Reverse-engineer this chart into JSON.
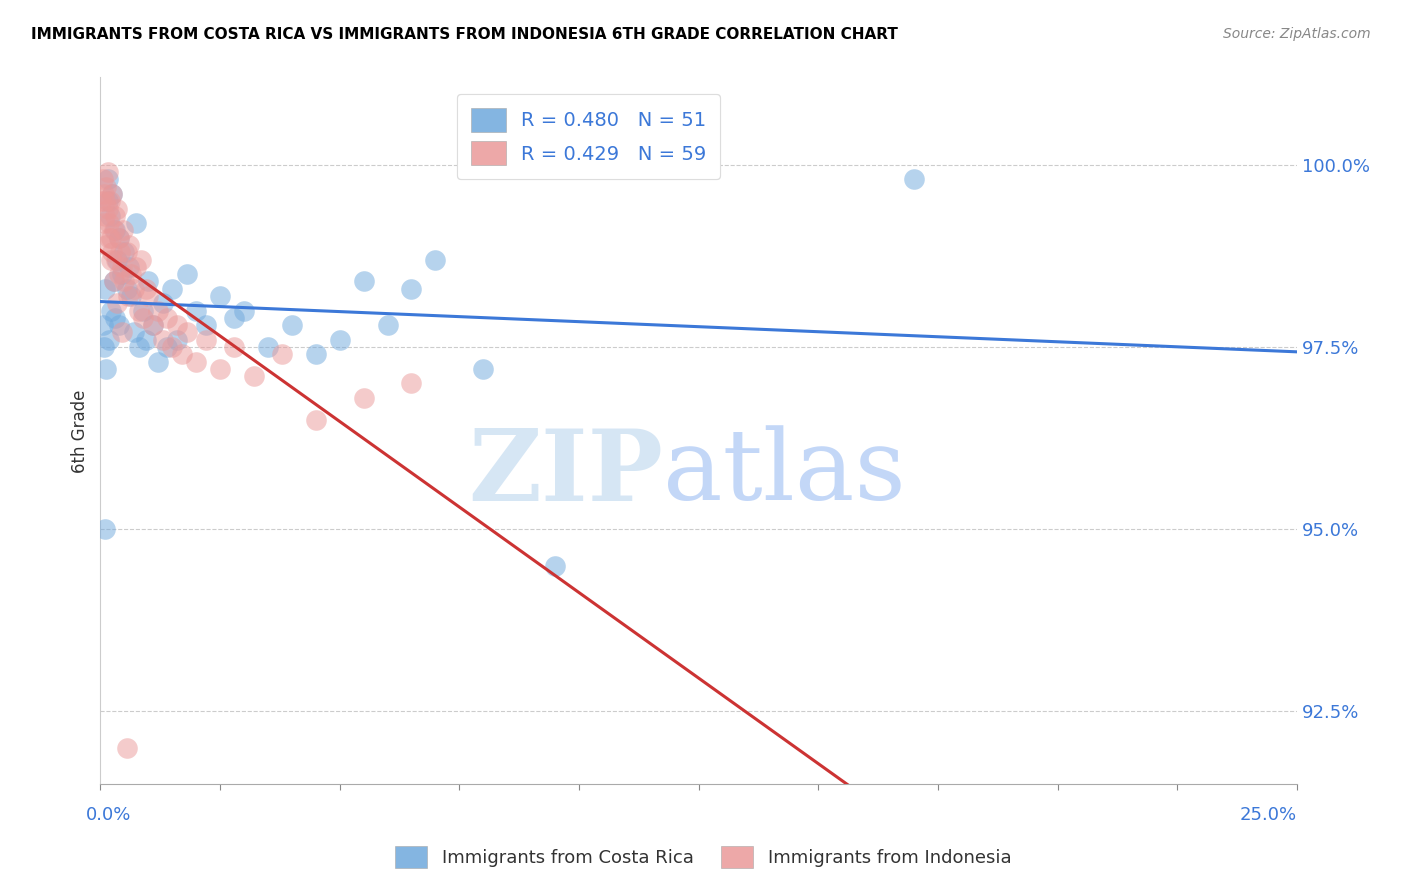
{
  "title": "IMMIGRANTS FROM COSTA RICA VS IMMIGRANTS FROM INDONESIA 6TH GRADE CORRELATION CHART",
  "source": "Source: ZipAtlas.com",
  "ylabel": "6th Grade",
  "xlim": [
    0.0,
    25.0
  ],
  "ylim": [
    91.5,
    101.2
  ],
  "yticks": [
    92.5,
    95.0,
    97.5,
    100.0
  ],
  "ytick_labels": [
    "92.5%",
    "95.0%",
    "97.5%",
    "100.0%"
  ],
  "xtick_left": "0.0%",
  "xtick_right": "25.0%",
  "legend_blue_label": "R = 0.480   N = 51",
  "legend_pink_label": "R = 0.429   N = 59",
  "legend_bottom_blue": "Immigrants from Costa Rica",
  "legend_bottom_pink": "Immigrants from Indonesia",
  "watermark_zip": "ZIP",
  "watermark_atlas": "atlas",
  "blue_color": "#6fa8dc",
  "pink_color": "#ea9999",
  "blue_line_color": "#3c78d8",
  "pink_line_color": "#cc3333",
  "blue_scatter_alpha": 0.5,
  "pink_scatter_alpha": 0.5,
  "costa_rica_x": [
    0.05,
    0.08,
    0.1,
    0.12,
    0.15,
    0.15,
    0.18,
    0.2,
    0.22,
    0.25,
    0.28,
    0.3,
    0.3,
    0.35,
    0.38,
    0.4,
    0.45,
    0.5,
    0.55,
    0.6,
    0.65,
    0.7,
    0.75,
    0.8,
    0.9,
    0.95,
    1.0,
    1.1,
    1.2,
    1.3,
    1.4,
    1.5,
    1.6,
    1.8,
    2.0,
    2.2,
    2.5,
    2.8,
    3.0,
    3.5,
    4.0,
    4.5,
    5.0,
    5.5,
    6.0,
    6.5,
    7.0,
    8.0,
    9.5,
    17.0,
    0.1
  ],
  "costa_rica_y": [
    97.8,
    97.5,
    98.3,
    97.2,
    99.8,
    99.5,
    97.6,
    99.3,
    98.0,
    99.6,
    98.4,
    99.1,
    97.9,
    98.7,
    97.8,
    99.0,
    98.5,
    98.8,
    98.3,
    98.6,
    98.2,
    97.7,
    99.2,
    97.5,
    98.0,
    97.6,
    98.4,
    97.8,
    97.3,
    98.1,
    97.5,
    98.3,
    97.6,
    98.5,
    98.0,
    97.8,
    98.2,
    97.9,
    98.0,
    97.5,
    97.8,
    97.4,
    97.6,
    98.4,
    97.8,
    98.3,
    98.7,
    97.2,
    94.5,
    99.8,
    95.0
  ],
  "indonesia_x": [
    0.02,
    0.05,
    0.08,
    0.1,
    0.12,
    0.15,
    0.15,
    0.18,
    0.2,
    0.22,
    0.25,
    0.25,
    0.28,
    0.3,
    0.32,
    0.35,
    0.38,
    0.4,
    0.42,
    0.45,
    0.48,
    0.5,
    0.55,
    0.58,
    0.6,
    0.65,
    0.7,
    0.75,
    0.8,
    0.85,
    0.9,
    0.95,
    1.0,
    1.1,
    1.2,
    1.3,
    1.4,
    1.5,
    1.6,
    1.7,
    1.8,
    2.0,
    2.2,
    2.5,
    2.8,
    3.2,
    3.8,
    4.5,
    5.5,
    6.5,
    0.08,
    0.1,
    0.12,
    0.18,
    0.22,
    0.28,
    0.35,
    0.45,
    0.55
  ],
  "indonesia_y": [
    99.5,
    99.8,
    99.6,
    99.3,
    99.7,
    99.9,
    99.4,
    99.2,
    99.5,
    99.0,
    99.6,
    98.8,
    99.1,
    99.3,
    98.7,
    99.4,
    98.5,
    99.0,
    98.8,
    98.6,
    99.1,
    98.4,
    98.8,
    98.2,
    98.9,
    98.5,
    98.3,
    98.6,
    98.0,
    98.7,
    97.9,
    98.3,
    98.2,
    97.8,
    98.0,
    97.6,
    97.9,
    97.5,
    97.8,
    97.4,
    97.7,
    97.3,
    97.6,
    97.2,
    97.5,
    97.1,
    97.4,
    96.5,
    96.8,
    97.0,
    99.2,
    99.5,
    98.9,
    99.0,
    98.7,
    98.4,
    98.1,
    97.7,
    92.0
  ]
}
